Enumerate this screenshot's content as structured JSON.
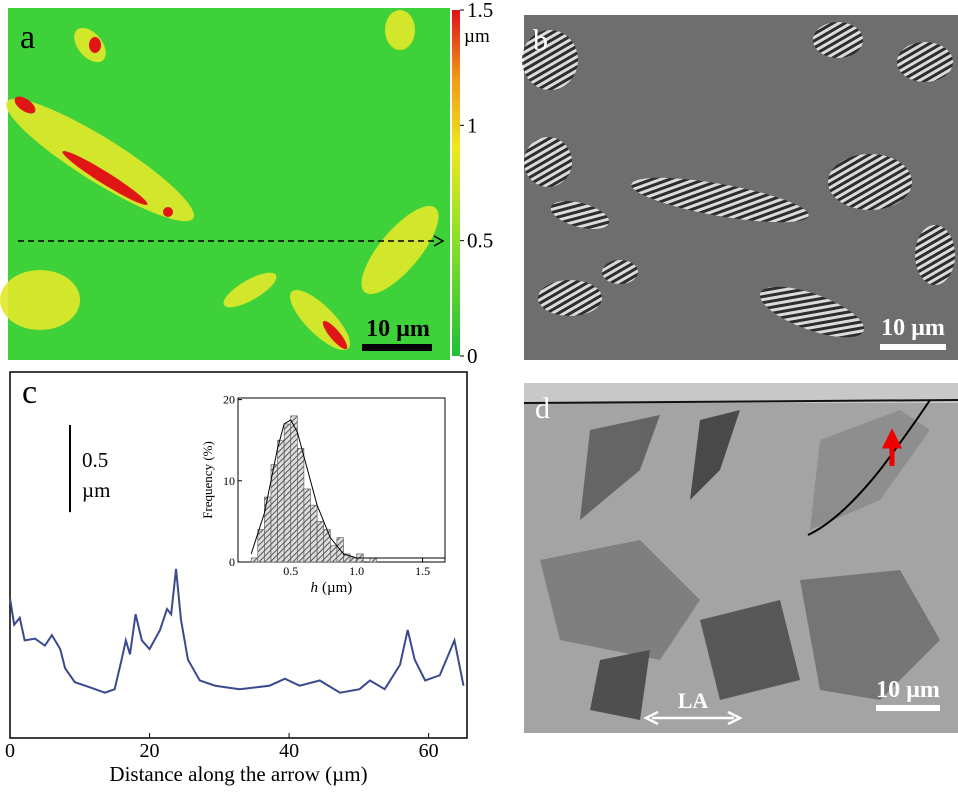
{
  "panels": {
    "a": {
      "label": "a",
      "scale_bar": "10 µm",
      "colorbar": {
        "ylim": [
          0,
          1.5
        ],
        "yticks": [
          0,
          0.5,
          1,
          1.5
        ],
        "unit": "µm"
      }
    },
    "b": {
      "label": "b",
      "scale_bar": "10 µm"
    },
    "c": {
      "label": "c"
    },
    "d": {
      "label": "d",
      "scale_bar": "10 µm",
      "annotation": "LA"
    }
  },
  "chart_data": [
    {
      "type": "line",
      "xlabel": "Distance along the arrow (µm)",
      "xlim": [
        0,
        65.5
      ],
      "xticks": [
        0,
        20,
        40,
        60
      ],
      "ylim": [
        0,
        2.1
      ],
      "scale_bar": {
        "value": 0.5,
        "unit": "µm"
      },
      "series": [
        {
          "color": "#3a4a8c",
          "x": [
            0,
            0.6,
            1.4,
            2.1,
            3.6,
            5,
            6,
            7.2,
            7.9,
            9.3,
            11.5,
            13.6,
            15,
            16,
            16.6,
            17.2,
            18,
            18.9,
            20,
            21.5,
            22.5,
            23.1,
            23.8,
            24.5,
            25.5,
            27.2,
            29.4,
            32.9,
            37.2,
            39.4,
            41.5,
            44.4,
            47.3,
            50.1,
            51.6,
            53.7,
            55.9,
            57,
            58,
            59.5,
            61.6,
            63.7,
            65
          ],
          "values": [
            0.8,
            0.65,
            0.69,
            0.56,
            0.57,
            0.53,
            0.59,
            0.51,
            0.4,
            0.32,
            0.29,
            0.26,
            0.28,
            0.45,
            0.56,
            0.48,
            0.71,
            0.56,
            0.51,
            0.62,
            0.74,
            0.71,
            0.97,
            0.68,
            0.45,
            0.33,
            0.3,
            0.28,
            0.3,
            0.34,
            0.3,
            0.33,
            0.26,
            0.28,
            0.33,
            0.28,
            0.42,
            0.62,
            0.45,
            0.33,
            0.36,
            0.56,
            0.3
          ]
        }
      ]
    },
    {
      "type": "histogram",
      "xlabel_var": "h",
      "xlabel_unit": "(µm)",
      "ylabel": "Frequency (%)",
      "xlim": [
        0.1,
        1.67
      ],
      "xticks": [
        {
          "value": 0.5,
          "label": "0.5"
        },
        {
          "value": 1,
          "label": "1.0"
        },
        {
          "value": 1.5,
          "label": "1.5"
        }
      ],
      "ylim": [
        0,
        20.2
      ],
      "yticks": [
        0,
        10,
        20
      ],
      "bins": [
        0.2,
        0.25,
        0.3,
        0.35,
        0.4,
        0.45,
        0.5,
        0.55,
        0.6,
        0.65,
        0.7,
        0.75,
        0.8,
        0.85,
        0.9,
        0.95,
        1.0,
        1.05,
        1.1,
        1.15
      ],
      "values": [
        0.5,
        4,
        8,
        12,
        15,
        17,
        18,
        14,
        9,
        7,
        5,
        4,
        2,
        3,
        1,
        0.5,
        1,
        0,
        0.5
      ],
      "fit": {
        "x": [
          0.2,
          0.3,
          0.4,
          0.45,
          0.5,
          0.55,
          0.6,
          0.7,
          0.8,
          0.9,
          1.0,
          1.1,
          1.67
        ],
        "values": [
          1,
          6,
          14,
          17,
          17.5,
          16,
          13,
          7,
          3,
          1,
          0.5,
          0.5,
          0.5
        ]
      }
    }
  ]
}
